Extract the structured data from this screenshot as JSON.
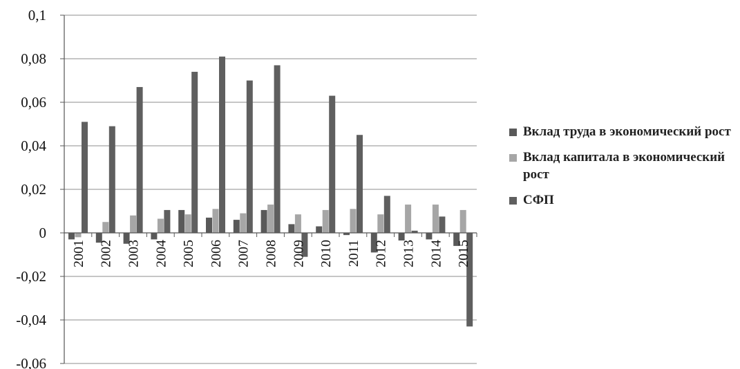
{
  "chart_data": {
    "type": "bar",
    "categories": [
      "2001",
      "2002",
      "2003",
      "2004",
      "2005",
      "2006",
      "2007",
      "2008",
      "2009",
      "2010",
      "2011",
      "2012",
      "2013",
      "2014",
      "2015"
    ],
    "series": [
      {
        "name": "Вклад труда в экономический рост",
        "color": "#595959",
        "values": [
          -0.003,
          -0.0045,
          -0.005,
          -0.003,
          0.0105,
          0.007,
          0.006,
          0.0105,
          0.004,
          0.003,
          -0.001,
          -0.009,
          -0.0035,
          -0.003,
          -0.006
        ]
      },
      {
        "name": "Вклад капитала в экономический рост",
        "color": "#a6a6a6",
        "values": [
          -0.002,
          0.005,
          0.008,
          0.0065,
          0.0085,
          0.011,
          0.009,
          0.013,
          0.0085,
          0.0105,
          0.011,
          0.0085,
          0.013,
          0.013,
          0.0105
        ]
      },
      {
        "name": "СФП",
        "color": "#5f5f5f",
        "values": [
          0.051,
          0.049,
          0.067,
          0.0105,
          0.074,
          0.081,
          0.07,
          0.077,
          -0.011,
          0.063,
          0.045,
          0.017,
          0.001,
          0.0075,
          -0.043
        ]
      }
    ],
    "yticks": [
      "0,1",
      "0,08",
      "0,06",
      "0,04",
      "0,02",
      "0",
      "-0,02",
      "-0,04",
      "-0,06"
    ],
    "ylim": [
      -0.06,
      0.1
    ],
    "grid": true,
    "legend_position": "right"
  }
}
